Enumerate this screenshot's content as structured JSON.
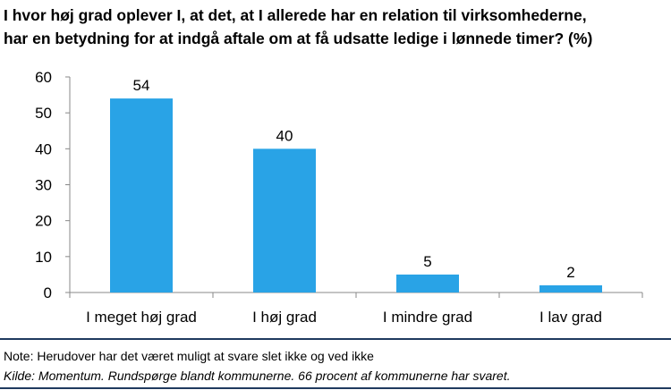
{
  "title_lines": [
    "I hvor høj grad oplever I, at det, at I allerede har en relation til virksomhederne,",
    "har en betydning for at indgå aftale om at få udsatte ledige i lønnede timer? (%)"
  ],
  "note": "Note: Herudover har det været muligt at svare slet ikke og ved ikke",
  "source": "Kilde: Momentum. Rundspørge blandt kommunerne. 66 procent af kommunerne har svaret.",
  "colors": {
    "bar": "#29a3e6",
    "rule": "#1f3a5f",
    "axis": "#888888"
  },
  "chart_data": {
    "type": "bar",
    "categories": [
      "I meget høj grad",
      "I høj grad",
      "I mindre grad",
      "I lav grad"
    ],
    "values": [
      54,
      40,
      5,
      2
    ],
    "data_labels": [
      "54",
      "40",
      "5",
      "2"
    ],
    "ylim": [
      0,
      60
    ],
    "yticks": [
      0,
      10,
      20,
      30,
      40,
      50,
      60
    ],
    "grid": false,
    "legend": "none"
  }
}
